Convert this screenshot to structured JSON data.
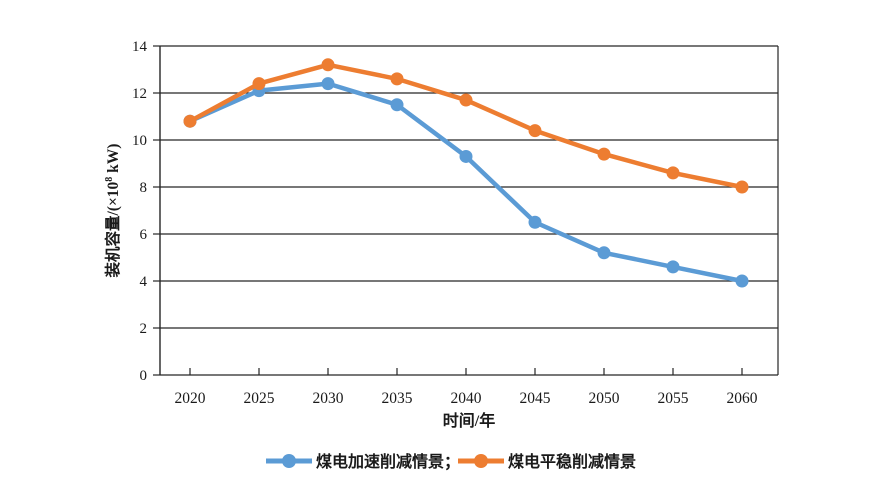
{
  "figure": {
    "background": "#ffffff",
    "axis_color": "#262626",
    "text_color": "#1a1a1a"
  },
  "chart_data": {
    "type": "line",
    "title": "",
    "categories": [
      "2020",
      "2025",
      "2030",
      "2035",
      "2040",
      "2045",
      "2050",
      "2055",
      "2060"
    ],
    "series": [
      {
        "name": "煤电加速削减情景",
        "legend_label": "煤电加速削减情景；",
        "color": "#5B9BD5",
        "marker": "circle",
        "values": [
          10.8,
          12.1,
          12.4,
          11.5,
          9.3,
          6.5,
          5.2,
          4.6,
          4.0
        ]
      },
      {
        "name": "煤电平稳削减情景",
        "legend_label": "煤电平稳削减情景",
        "color": "#ED7D31",
        "marker": "circle",
        "values": [
          10.8,
          12.4,
          13.2,
          12.6,
          11.7,
          10.4,
          9.4,
          8.6,
          8.0
        ]
      }
    ],
    "xlabel": "时间/年",
    "ylabel": "装机容量/(×10⁸ kW)",
    "ylabel_parts": {
      "prefix": "装机容量/(×10",
      "sup": "8",
      "suffix": " kW)"
    },
    "ylim": [
      0,
      14
    ],
    "yticks": [
      0,
      2,
      4,
      6,
      8,
      10,
      12,
      14
    ],
    "grid": "horizontal",
    "plot_border": "box",
    "legend_position": "bottom"
  }
}
